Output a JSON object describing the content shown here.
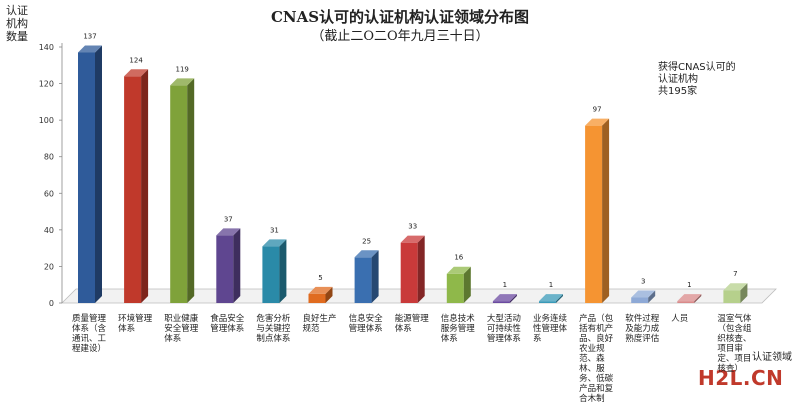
{
  "title": "CNAS认可的认证机构认证领域分布图",
  "subtitle": "（截止二O二O年九月三十日）",
  "yaxis_label": [
    "认证",
    "机构",
    "数量"
  ],
  "xaxis_label": "认证领域",
  "note": [
    "获得CNAS认可的",
    "认证机构",
    "共195家"
  ],
  "watermark": "H2L.CN",
  "chart_data": {
    "type": "bar",
    "title": "CNAS认可的认证机构认证领域分布图",
    "subtitle": "（截止二O二O年九月三十日）",
    "ylabel": "认证机构数量",
    "xlabel": "认证领域",
    "ylim": [
      0,
      140
    ],
    "yticks": [
      0,
      20,
      40,
      60,
      80,
      100,
      120,
      140
    ],
    "categories": [
      "质量管理体系（含通讯、工程建设）",
      "环境管理体系",
      "职业健康安全管理体系",
      "食品安全管理体系",
      "危害分析与关键控制点体系",
      "良好生产规范",
      "信息安全管理体系",
      "能源管理体系",
      "信息技术服务管理体系",
      "大型活动可持续性管理体系",
      "业务连续性管理体系",
      "产品（包括有机产品、良好农业规范、森林、服务、低碳产品和复合木制",
      "软件过程及能力成熟度评估",
      "人员",
      "温室气体（包含组织核查、项目审定、项目核查）"
    ],
    "values": [
      137,
      124,
      119,
      37,
      31,
      5,
      25,
      33,
      16,
      1,
      1,
      97,
      3,
      1,
      7
    ],
    "colors": [
      "#2f5b9a",
      "#c0392b",
      "#7fa23a",
      "#5f4690",
      "#2a8aa8",
      "#e06b1f",
      "#3a6fb0",
      "#c93a3a",
      "#8fb84a",
      "#6b4aa0",
      "#3a9ab8",
      "#f59432",
      "#8ea9d6",
      "#d98a8a",
      "#b6d08c"
    ]
  }
}
